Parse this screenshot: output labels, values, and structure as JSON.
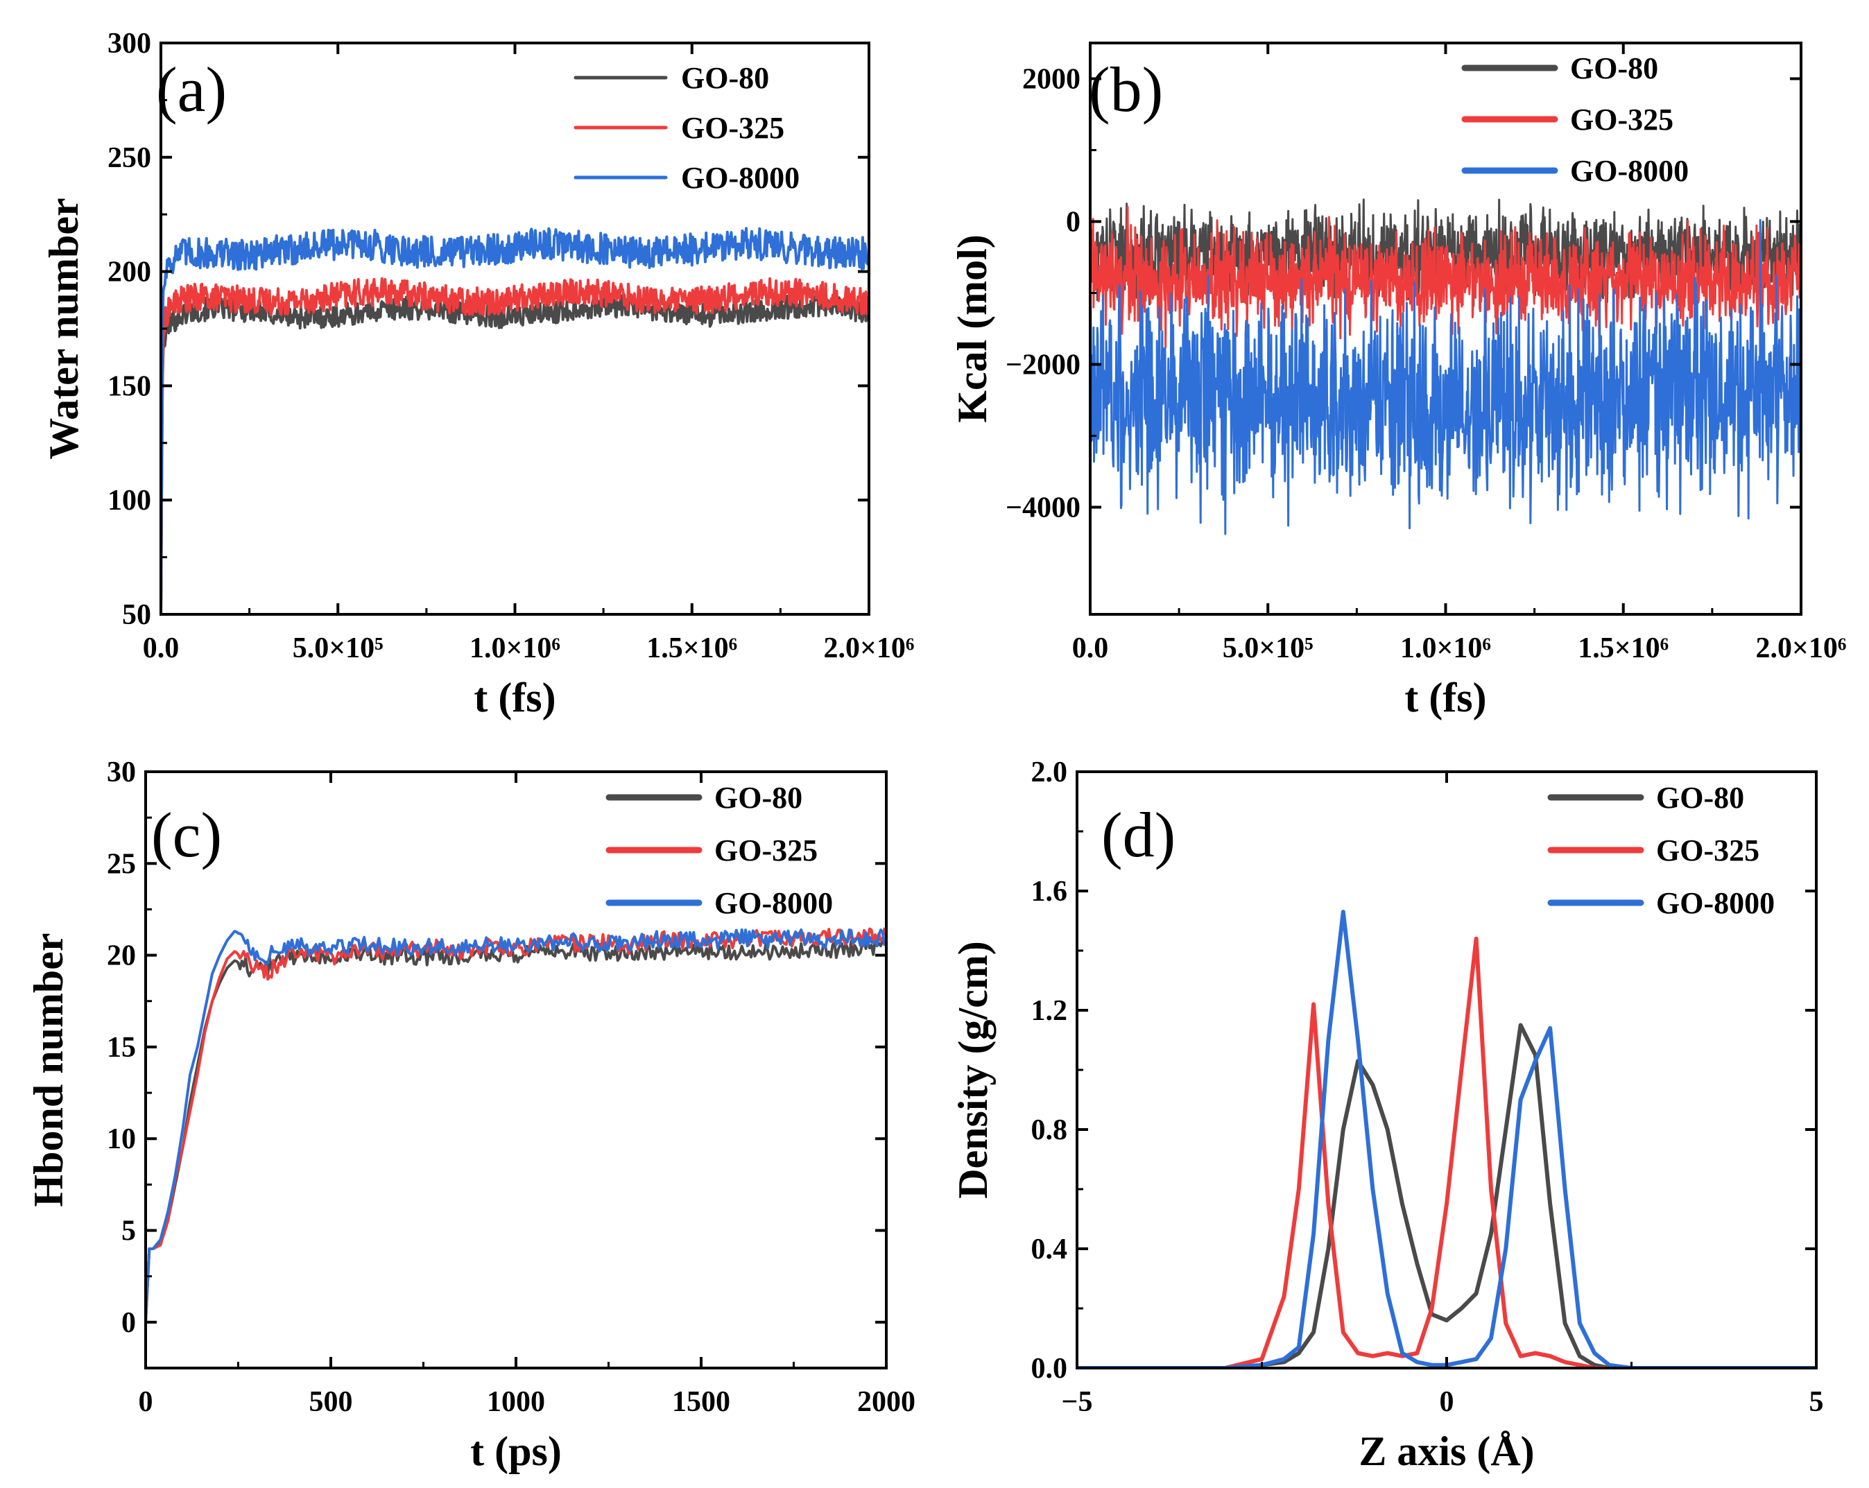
{
  "chart_data": [
    {
      "panel_label": "(a)",
      "type": "line",
      "xlabel": "t (fs)",
      "ylabel": "Water number",
      "xlim": [
        0,
        2000000
      ],
      "ylim": [
        50,
        300
      ],
      "xticks": [
        0,
        500000,
        1000000,
        1500000,
        2000000
      ],
      "xtick_labels": [
        "0.0",
        "5.0×10⁵",
        "1.0×10⁶",
        "1.5×10⁶",
        "2.0×10⁶"
      ],
      "yticks": [
        50,
        100,
        150,
        200,
        250,
        300
      ],
      "ytick_labels": [
        "50",
        "100",
        "150",
        "200",
        "250",
        "300"
      ],
      "legend_position": "top-right",
      "series": [
        {
          "name": "GO-80",
          "color": "#4a4a4a",
          "noise": 5,
          "y": [
            50,
            165,
            176,
            180,
            182,
            182,
            182,
            182,
            183,
            183,
            183,
            183
          ]
        },
        {
          "name": "GO-325",
          "color": "#ee3c3c",
          "noise": 6,
          "y": [
            50,
            170,
            182,
            186,
            188,
            189,
            189,
            189,
            189,
            189,
            189,
            189
          ]
        },
        {
          "name": "GO-8000",
          "color": "#2e6fd8",
          "noise": 7,
          "y": [
            50,
            190,
            203,
            207,
            209,
            210,
            210,
            210,
            210,
            210,
            210,
            210
          ]
        }
      ],
      "x": [
        0,
        5000,
        20000,
        60000,
        150000,
        300000,
        600000,
        900000,
        1200000,
        1500000,
        1800000,
        2000000
      ]
    },
    {
      "panel_label": "(b)",
      "type": "line",
      "xlabel": "t (fs)",
      "ylabel": "Kcal (mol)",
      "xlim": [
        0,
        2000000
      ],
      "ylim": [
        -5500,
        2500
      ],
      "xticks": [
        0,
        500000,
        1000000,
        1500000,
        2000000
      ],
      "xtick_labels": [
        "0.0",
        "5.0×10⁵",
        "1.0×10⁶",
        "1.5×10⁶",
        "2.0×10⁶"
      ],
      "yticks": [
        -4000,
        -2000,
        0,
        2000
      ],
      "ytick_labels": [
        "−4000",
        "−2000",
        "0",
        "2000"
      ],
      "legend_position": "top-right",
      "series": [
        {
          "name": "GO-80",
          "color": "#4a4a4a",
          "mean": -450,
          "spread": 850
        },
        {
          "name": "GO-325",
          "color": "#ee3c3c",
          "mean": -800,
          "spread": 900
        },
        {
          "name": "GO-8000",
          "color": "#2e6fd8",
          "mean": -2500,
          "spread": 2000
        }
      ]
    },
    {
      "panel_label": "(c)",
      "type": "line",
      "xlabel": "t (ps)",
      "ylabel": "Hbond number",
      "xlim": [
        0,
        2000
      ],
      "ylim": [
        -2.5,
        30
      ],
      "xticks": [
        0,
        500,
        1000,
        1500,
        2000
      ],
      "xtick_labels": [
        "0",
        "500",
        "1000",
        "1500",
        "2000"
      ],
      "yticks": [
        0,
        5,
        10,
        15,
        20,
        25,
        30
      ],
      "ytick_labels": [
        "0",
        "5",
        "10",
        "15",
        "20",
        "25",
        "30"
      ],
      "legend_position": "top-right",
      "x": [
        0,
        10,
        20,
        40,
        60,
        80,
        100,
        120,
        140,
        160,
        180,
        200,
        220,
        240,
        260,
        280,
        300,
        320,
        340,
        360,
        380,
        400,
        450,
        500,
        550,
        600,
        650,
        700,
        750,
        800,
        850,
        900,
        950,
        1000,
        1050,
        1100,
        1150,
        1200,
        1250,
        1300,
        1350,
        1400,
        1450,
        1500,
        1550,
        1600,
        1650,
        1700,
        1750,
        1800,
        1850,
        1900,
        1950,
        2000
      ],
      "series": [
        {
          "name": "GO-80",
          "color": "#4a4a4a",
          "values": [
            0,
            4,
            4,
            4.3,
            5.5,
            7.5,
            9.5,
            12,
            14,
            16,
            17.5,
            18.5,
            19.3,
            19.7,
            19.6,
            19.3,
            19.2,
            19.2,
            19.5,
            19.7,
            19.8,
            19.9,
            20.0,
            19.9,
            19.9,
            20.0,
            19.9,
            20.0,
            19.9,
            20.0,
            19.9,
            20.0,
            20.1,
            20.0,
            20.1,
            20.2,
            20.2,
            20.1,
            20.2,
            20.1,
            20.2,
            20.1,
            20.3,
            20.2,
            20.3,
            20.1,
            20.3,
            20.2,
            20.2,
            20.4,
            20.3,
            20.3,
            20.5,
            20.4
          ]
        },
        {
          "name": "GO-325",
          "color": "#ee3c3c",
          "values": [
            0,
            4,
            4,
            4.2,
            5.5,
            7.8,
            9.5,
            11.5,
            13.5,
            15.8,
            17.5,
            18.8,
            19.8,
            20.2,
            20.0,
            19.6,
            19.4,
            19.0,
            19.2,
            19.5,
            19.8,
            20.0,
            20.1,
            19.9,
            20.1,
            20.3,
            20.2,
            20.4,
            20.3,
            20.5,
            20.2,
            20.4,
            20.5,
            20.4,
            20.5,
            20.7,
            20.6,
            20.7,
            20.8,
            20.5,
            20.7,
            20.9,
            20.8,
            20.7,
            20.9,
            20.8,
            20.9,
            21.0,
            20.9,
            20.8,
            21.0,
            20.9,
            21.0,
            21.0
          ]
        },
        {
          "name": "GO-8000",
          "color": "#2e6fd8",
          "values": [
            0,
            4,
            4,
            4.5,
            6,
            8,
            10.5,
            13.5,
            15,
            17,
            19,
            20,
            20.8,
            21.3,
            21.2,
            20.5,
            20.0,
            19.9,
            20.1,
            20.3,
            20.3,
            20.5,
            20.4,
            20.3,
            20.5,
            20.6,
            20.4,
            20.5,
            20.4,
            20.6,
            20.3,
            20.5,
            20.6,
            20.5,
            20.6,
            20.7,
            20.8,
            20.6,
            20.7,
            20.6,
            20.8,
            20.9,
            20.8,
            20.9,
            20.8,
            21.0,
            20.9,
            20.8,
            21.0,
            20.9,
            20.8,
            21.0,
            20.9,
            21.0
          ]
        }
      ]
    },
    {
      "panel_label": "(d)",
      "type": "line",
      "xlabel": "Z axis (Å)",
      "ylabel": "Density (g/cm)",
      "xlim": [
        -5,
        5
      ],
      "ylim": [
        0,
        2.0
      ],
      "xticks": [
        -5,
        0,
        5
      ],
      "xtick_labels": [
        "−5",
        "0",
        "5"
      ],
      "yticks": [
        0,
        0.4,
        0.8,
        1.2,
        1.6,
        2.0
      ],
      "ytick_labels": [
        "0.0",
        "0.4",
        "0.8",
        "1.2",
        "1.6",
        "2.0"
      ],
      "legend_position": "top-right",
      "x": [
        -5,
        -4,
        -3,
        -2.5,
        -2.2,
        -2.0,
        -1.8,
        -1.6,
        -1.4,
        -1.2,
        -1.0,
        -0.8,
        -0.6,
        -0.4,
        -0.2,
        0,
        0.2,
        0.4,
        0.6,
        0.8,
        1.0,
        1.2,
        1.4,
        1.6,
        1.8,
        2.0,
        2.2,
        2.5,
        3,
        4,
        5
      ],
      "series": [
        {
          "name": "GO-80",
          "color": "#4a4a4a",
          "values": [
            0,
            0,
            0,
            0.01,
            0.02,
            0.05,
            0.12,
            0.4,
            0.8,
            1.03,
            0.95,
            0.8,
            0.55,
            0.35,
            0.18,
            0.16,
            0.2,
            0.25,
            0.45,
            0.8,
            1.15,
            1.05,
            0.55,
            0.15,
            0.04,
            0.01,
            0,
            0,
            0,
            0,
            0
          ]
        },
        {
          "name": "GO-325",
          "color": "#ee3c3c",
          "values": [
            0,
            0,
            0,
            0.03,
            0.24,
            0.6,
            1.22,
            0.55,
            0.12,
            0.05,
            0.04,
            0.05,
            0.04,
            0.05,
            0.2,
            0.55,
            1.0,
            1.44,
            0.6,
            0.15,
            0.04,
            0.05,
            0.04,
            0.02,
            0.01,
            0,
            0,
            0,
            0,
            0,
            0
          ]
        },
        {
          "name": "GO-8000",
          "color": "#2e6fd8",
          "values": [
            0,
            0,
            0,
            0.01,
            0.03,
            0.07,
            0.45,
            1.1,
            1.53,
            1.1,
            0.6,
            0.25,
            0.05,
            0.02,
            0.01,
            0.01,
            0.02,
            0.03,
            0.1,
            0.4,
            0.9,
            1.03,
            1.14,
            0.6,
            0.15,
            0.05,
            0.01,
            0,
            0,
            0,
            0
          ]
        }
      ]
    }
  ]
}
